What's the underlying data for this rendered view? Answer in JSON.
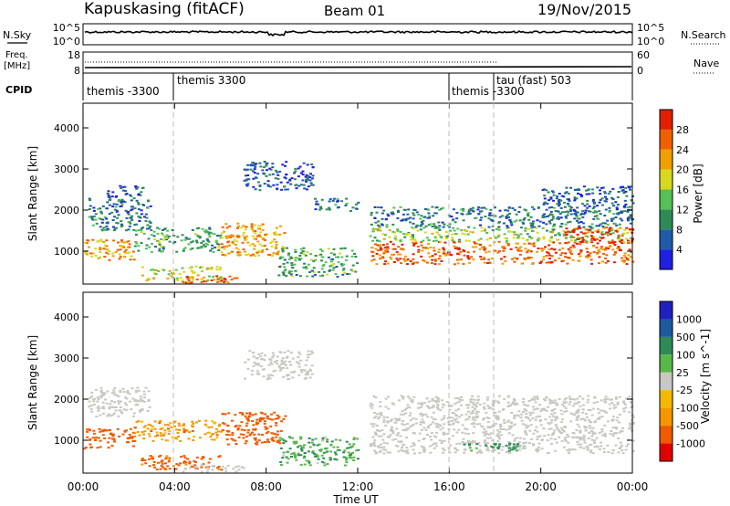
{
  "header": {
    "station": "Kapuskasing (fitACF)",
    "beam": "Beam 01",
    "date": "19/Nov/2015"
  },
  "noise_panel": {
    "left_label": "N.Sky",
    "left_ticks": [
      "10^5",
      "10^0"
    ],
    "right_ticks": [
      "10^5",
      "10^0"
    ],
    "right_label": "N.Search"
  },
  "freq_panel": {
    "label_top": "Freq.",
    "label_unit": "[MHz]",
    "left_ticks": [
      "18",
      "8"
    ],
    "right_ticks": [
      "60",
      "0"
    ],
    "right_label": "Nave"
  },
  "cpid_panel": {
    "label": "CPID",
    "segments": [
      {
        "name": "themis -3300"
      },
      {
        "name": "themis 3300"
      },
      {
        "name": "themis -3300"
      },
      {
        "name": "tau (fast) 503"
      }
    ]
  },
  "time_axis": {
    "ticks": [
      "00:00",
      "04:00",
      "08:00",
      "12:00",
      "16:00",
      "20:00",
      "00:00"
    ],
    "label": "Time UT"
  },
  "colors": {
    "power_scale": [
      "#2020e0",
      "#1f5ba8",
      "#2e8b57",
      "#55c055",
      "#d8d820",
      "#f0a000",
      "#f06000",
      "#e02000"
    ],
    "velocity_scale": [
      "#e00000",
      "#f05a00",
      "#f59600",
      "#f5b800",
      "#c8c8c0",
      "#58b848",
      "#2e8b57",
      "#1e5aa0",
      "#2020c0"
    ],
    "ground_scatter": "#c8c8c0"
  },
  "chart_data": [
    {
      "type": "heatmap",
      "title": "Power",
      "xlabel": "Time UT",
      "ylabel": "Slant Range [km]",
      "xlim": [
        0,
        24
      ],
      "ylim": [
        200,
        4600
      ],
      "yticks": [
        "1000",
        "2000",
        "3000",
        "4000"
      ],
      "colorbar": {
        "label": "Power [dB]",
        "ticks": [
          "4",
          "8",
          "12",
          "16",
          "20",
          "24",
          "28"
        ],
        "range": [
          0,
          30
        ]
      },
      "bands": [
        {
          "t0": 0.0,
          "t1": 2.2,
          "r0": 800,
          "r1": 1300,
          "v": 22
        },
        {
          "t0": 0.2,
          "t1": 3.0,
          "r0": 1500,
          "r1": 2300,
          "v": 8
        },
        {
          "t0": 1.0,
          "t1": 2.6,
          "r0": 2300,
          "r1": 2650,
          "v": 6
        },
        {
          "t0": 2.2,
          "t1": 6.0,
          "r0": 1000,
          "r1": 1600,
          "v": 12
        },
        {
          "t0": 2.5,
          "t1": 6.0,
          "r0": 300,
          "r1": 650,
          "v": 18
        },
        {
          "t0": 4.2,
          "t1": 6.8,
          "r0": 250,
          "r1": 420,
          "v": 28
        },
        {
          "t0": 6.0,
          "t1": 8.8,
          "r0": 900,
          "r1": 1700,
          "v": 22
        },
        {
          "t0": 7.0,
          "t1": 10.0,
          "r0": 2500,
          "r1": 3200,
          "v": 6
        },
        {
          "t0": 8.5,
          "t1": 12.0,
          "r0": 400,
          "r1": 1100,
          "v": 12
        },
        {
          "t0": 10.0,
          "t1": 12.0,
          "r0": 2000,
          "r1": 2300,
          "v": 8
        },
        {
          "t0": 12.5,
          "t1": 24.0,
          "r0": 700,
          "r1": 1250,
          "v": 26
        },
        {
          "t0": 12.5,
          "t1": 24.0,
          "r0": 1250,
          "r1": 1600,
          "v": 16
        },
        {
          "t0": 12.5,
          "t1": 24.0,
          "r0": 1600,
          "r1": 2100,
          "v": 8
        },
        {
          "t0": 21.0,
          "t1": 24.0,
          "r0": 1200,
          "r1": 1600,
          "v": 30
        },
        {
          "t0": 20.0,
          "t1": 24.0,
          "r0": 2100,
          "r1": 2600,
          "v": 6
        }
      ]
    },
    {
      "type": "heatmap",
      "title": "Velocity",
      "xlabel": "Time UT",
      "ylabel": "Slant Range [km]",
      "xlim": [
        0,
        24
      ],
      "ylim": [
        200,
        4600
      ],
      "yticks": [
        "1000",
        "2000",
        "3000",
        "4000"
      ],
      "colorbar": {
        "label": "Velocity [m s^-1]",
        "ticks": [
          "1000",
          "500",
          "100",
          "25",
          "-25",
          "-100",
          "-500",
          "-1000"
        ]
      },
      "bands": [
        {
          "t0": 0.0,
          "t1": 2.2,
          "r0": 800,
          "r1": 1300,
          "v": -300,
          "g": 0
        },
        {
          "t0": 0.2,
          "t1": 3.0,
          "r0": 1600,
          "r1": 2300,
          "v": 0,
          "g": 1
        },
        {
          "t0": 2.2,
          "t1": 6.0,
          "r0": 1000,
          "r1": 1500,
          "v": -60,
          "g": 0
        },
        {
          "t0": 2.5,
          "t1": 6.0,
          "r0": 300,
          "r1": 650,
          "v": -150,
          "g": 0
        },
        {
          "t0": 4.2,
          "t1": 7.0,
          "r0": 250,
          "r1": 420,
          "v": 0,
          "g": 1
        },
        {
          "t0": 6.0,
          "t1": 8.8,
          "r0": 900,
          "r1": 1700,
          "v": -300,
          "g": 0
        },
        {
          "t0": 8.5,
          "t1": 12.0,
          "r0": 400,
          "r1": 1100,
          "v": 80,
          "g": 0
        },
        {
          "t0": 7.0,
          "t1": 10.0,
          "r0": 2500,
          "r1": 3200,
          "v": 0,
          "g": 1
        },
        {
          "t0": 12.5,
          "t1": 24.0,
          "r0": 700,
          "r1": 1600,
          "v": 0,
          "g": 1
        },
        {
          "t0": 12.5,
          "t1": 24.0,
          "r0": 1600,
          "r1": 2100,
          "v": 0,
          "g": 1
        },
        {
          "t0": 16.5,
          "t1": 19.0,
          "r0": 750,
          "r1": 950,
          "v": 150,
          "g": 0
        }
      ]
    }
  ]
}
